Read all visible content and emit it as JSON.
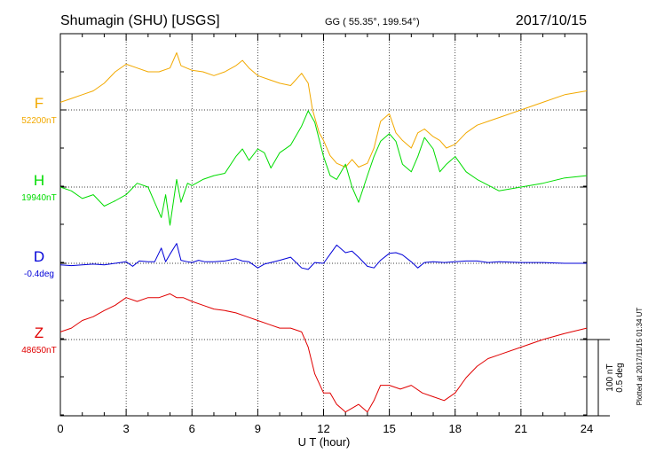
{
  "header": {
    "station": "Shumagin (SHU)  [USGS]",
    "coords": "GG ( 55.35°, 199.54°)",
    "date": "2017/10/15"
  },
  "xlabel": "U T (hour)",
  "scale_labels": {
    "nt": "100 nT",
    "deg": "0.5 deg"
  },
  "plotted_note": "Plotted at 2017/11/15 01:34 UT",
  "colors": {
    "F": "#f2a900",
    "H": "#00dc00",
    "D": "#0000d8",
    "Z": "#e00000"
  },
  "chart_data": {
    "type": "line",
    "xlim": [
      0,
      24
    ],
    "xticks": [
      0,
      3,
      6,
      9,
      12,
      15,
      18,
      21,
      24
    ],
    "grid": true,
    "series": [
      {
        "name": "F",
        "baseline_label": "52200nT",
        "baseline": 52200,
        "unit": "nT",
        "x": [
          0,
          0.5,
          1,
          1.5,
          2,
          2.5,
          3,
          3.5,
          4,
          4.5,
          5,
          5.3,
          5.5,
          6,
          6.5,
          7,
          7.5,
          8,
          8.3,
          8.6,
          9,
          9.5,
          10,
          10.5,
          11,
          11.3,
          11.5,
          11.8,
          12,
          12.3,
          12.6,
          13,
          13.3,
          13.6,
          14,
          14.3,
          14.6,
          15,
          15.3,
          15.6,
          16,
          16.3,
          16.6,
          17,
          17.3,
          17.6,
          18,
          18.5,
          19,
          19.5,
          20,
          21,
          22,
          23,
          24
        ],
        "y": [
          52210,
          52215,
          52220,
          52225,
          52235,
          52250,
          52260,
          52255,
          52250,
          52250,
          52255,
          52275,
          52258,
          52252,
          52250,
          52245,
          52250,
          52258,
          52265,
          52255,
          52245,
          52240,
          52235,
          52232,
          52248,
          52235,
          52200,
          52170,
          52160,
          52140,
          52130,
          52125,
          52135,
          52125,
          52130,
          52150,
          52185,
          52195,
          52170,
          52160,
          52150,
          52170,
          52175,
          52165,
          52160,
          52150,
          52155,
          52170,
          52180,
          52185,
          52190,
          52200,
          52210,
          52220,
          52225
        ]
      },
      {
        "name": "H",
        "baseline_label": "19940nT",
        "baseline": 19940,
        "unit": "nT",
        "x": [
          0,
          0.5,
          1,
          1.5,
          2,
          2.5,
          3,
          3.5,
          4,
          4.3,
          4.6,
          4.8,
          5,
          5.3,
          5.5,
          5.8,
          6,
          6.5,
          7,
          7.5,
          8,
          8.3,
          8.6,
          9,
          9.3,
          9.6,
          10,
          10.5,
          11,
          11.3,
          11.6,
          12,
          12.3,
          12.6,
          13,
          13.3,
          13.6,
          14,
          14.3,
          14.6,
          15,
          15.3,
          15.6,
          16,
          16.3,
          16.6,
          17,
          17.3,
          17.6,
          18,
          18.5,
          19,
          20,
          21,
          22,
          23,
          24
        ],
        "y": [
          19940,
          19935,
          19925,
          19930,
          19915,
          19922,
          19930,
          19945,
          19940,
          19920,
          19900,
          19930,
          19890,
          19950,
          19920,
          19945,
          19942,
          19950,
          19955,
          19958,
          19980,
          19990,
          19975,
          19990,
          19985,
          19965,
          19985,
          19995,
          20020,
          20040,
          20025,
          19980,
          19955,
          19950,
          19970,
          19940,
          19920,
          19955,
          19980,
          20000,
          20010,
          20000,
          19970,
          19960,
          19980,
          20005,
          19990,
          19960,
          19970,
          19980,
          19960,
          19950,
          19935,
          19940,
          19945,
          19952,
          19955
        ]
      },
      {
        "name": "D",
        "baseline_label": "-0.4deg",
        "baseline": -0.4,
        "unit": "deg",
        "x": [
          0,
          0.5,
          1,
          1.5,
          2,
          2.5,
          3,
          3.3,
          3.6,
          4,
          4.3,
          4.6,
          4.8,
          5,
          5.3,
          5.5,
          5.8,
          6,
          6.3,
          6.6,
          7,
          7.5,
          8,
          8.3,
          8.6,
          9,
          9.3,
          9.6,
          10,
          10.5,
          11,
          11.3,
          11.6,
          12,
          12.3,
          12.6,
          13,
          13.3,
          13.6,
          14,
          14.3,
          14.6,
          15,
          15.3,
          15.6,
          16,
          16.3,
          16.6,
          17,
          17.5,
          18,
          18.5,
          19,
          19.5,
          20,
          21,
          22,
          23,
          24
        ],
        "y": [
          -0.41,
          -0.415,
          -0.41,
          -0.405,
          -0.41,
          -0.4,
          -0.39,
          -0.42,
          -0.385,
          -0.39,
          -0.39,
          -0.3,
          -0.39,
          -0.34,
          -0.27,
          -0.38,
          -0.39,
          -0.395,
          -0.38,
          -0.39,
          -0.39,
          -0.385,
          -0.37,
          -0.385,
          -0.39,
          -0.43,
          -0.405,
          -0.395,
          -0.38,
          -0.36,
          -0.43,
          -0.44,
          -0.395,
          -0.4,
          -0.34,
          -0.28,
          -0.33,
          -0.32,
          -0.36,
          -0.42,
          -0.43,
          -0.38,
          -0.335,
          -0.33,
          -0.345,
          -0.39,
          -0.43,
          -0.395,
          -0.39,
          -0.395,
          -0.39,
          -0.385,
          -0.385,
          -0.395,
          -0.39,
          -0.395,
          -0.395,
          -0.4,
          -0.4
        ]
      },
      {
        "name": "Z",
        "baseline_label": "48650nT",
        "baseline": 48650,
        "unit": "nT",
        "x": [
          0,
          0.5,
          1,
          1.5,
          2,
          2.5,
          3,
          3.5,
          4,
          4.5,
          5,
          5.3,
          5.6,
          6,
          6.5,
          7,
          7.5,
          8,
          8.5,
          9,
          9.5,
          10,
          10.5,
          11,
          11.3,
          11.6,
          12,
          12.3,
          12.6,
          13,
          13.3,
          13.6,
          14,
          14.3,
          14.6,
          15,
          15.5,
          16,
          16.5,
          17,
          17.5,
          18,
          18.5,
          19,
          19.5,
          20,
          21,
          22,
          23,
          24
        ],
        "y": [
          48660,
          48665,
          48675,
          48680,
          48688,
          48695,
          48705,
          48700,
          48705,
          48705,
          48710,
          48705,
          48705,
          48700,
          48695,
          48690,
          48688,
          48685,
          48680,
          48675,
          48670,
          48665,
          48665,
          48660,
          48640,
          48605,
          48580,
          48580,
          48565,
          48555,
          48560,
          48565,
          48555,
          48570,
          48590,
          48590,
          48585,
          48590,
          48580,
          48575,
          48570,
          48580,
          48600,
          48615,
          48625,
          48630,
          48640,
          48650,
          48658,
          48665
        ]
      }
    ]
  }
}
